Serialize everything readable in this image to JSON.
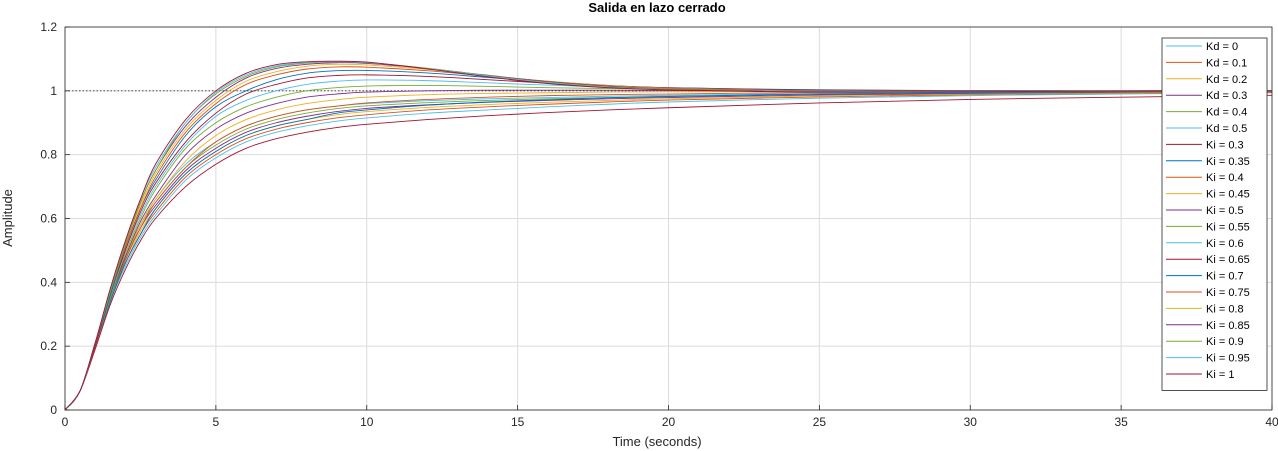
{
  "chart_data": {
    "type": "line",
    "title": "Salida en lazo cerrado",
    "xlabel": "Time (seconds)",
    "ylabel": "Amplitude",
    "xlim": [
      0,
      40
    ],
    "ylim": [
      0,
      1.2
    ],
    "xticks": [
      0,
      5,
      10,
      15,
      20,
      25,
      30,
      35,
      40
    ],
    "yticks": [
      0,
      0.2,
      0.4,
      0.6,
      0.8,
      1,
      1.2
    ],
    "xtick_labels": [
      "0",
      "5",
      "10",
      "15",
      "20",
      "25",
      "30",
      "35",
      "40"
    ],
    "ytick_labels": [
      "0",
      "0.2",
      "0.4",
      "0.6",
      "0.8",
      "1",
      "1.2"
    ],
    "grid": true,
    "reference_line": 1,
    "legend_position": "top-right",
    "x": [
      0,
      0.5,
      1,
      1.5,
      2,
      2.5,
      3,
      4,
      5,
      6,
      7,
      8,
      9,
      10,
      12,
      14,
      16,
      18,
      20,
      25,
      30,
      35,
      40
    ],
    "series": [
      {
        "name": "Kd = 0",
        "color": "#4dbeee",
        "values": [
          0,
          0.06,
          0.2,
          0.34,
          0.45,
          0.54,
          0.61,
          0.72,
          0.79,
          0.84,
          0.87,
          0.89,
          0.905,
          0.915,
          0.93,
          0.94,
          0.95,
          0.958,
          0.965,
          0.977,
          0.985,
          0.99,
          0.994
        ]
      },
      {
        "name": "Kd = 0.1",
        "color": "#d95319",
        "values": [
          0,
          0.06,
          0.2,
          0.34,
          0.46,
          0.55,
          0.62,
          0.73,
          0.8,
          0.85,
          0.88,
          0.9,
          0.915,
          0.925,
          0.94,
          0.95,
          0.958,
          0.965,
          0.971,
          0.981,
          0.988,
          0.992,
          0.995
        ]
      },
      {
        "name": "Kd = 0.2",
        "color": "#edb120",
        "values": [
          0,
          0.06,
          0.2,
          0.34,
          0.46,
          0.56,
          0.63,
          0.74,
          0.81,
          0.86,
          0.89,
          0.91,
          0.925,
          0.935,
          0.948,
          0.957,
          0.964,
          0.97,
          0.975,
          0.984,
          0.99,
          0.993,
          0.996
        ]
      },
      {
        "name": "Kd = 0.3",
        "color": "#7e2f8e",
        "values": [
          0,
          0.06,
          0.2,
          0.34,
          0.47,
          0.57,
          0.64,
          0.75,
          0.82,
          0.87,
          0.9,
          0.92,
          0.935,
          0.945,
          0.956,
          0.964,
          0.97,
          0.975,
          0.979,
          0.987,
          0.992,
          0.995,
          0.997
        ]
      },
      {
        "name": "Kd = 0.4",
        "color": "#77ac30",
        "values": [
          0,
          0.06,
          0.2,
          0.34,
          0.47,
          0.58,
          0.65,
          0.76,
          0.83,
          0.88,
          0.91,
          0.93,
          0.944,
          0.953,
          0.963,
          0.97,
          0.975,
          0.979,
          0.983,
          0.99,
          0.994,
          0.996,
          0.998
        ]
      },
      {
        "name": "Kd = 0.5",
        "color": "#4dbeee",
        "values": [
          0,
          0.06,
          0.2,
          0.34,
          0.48,
          0.58,
          0.66,
          0.77,
          0.84,
          0.89,
          0.92,
          0.94,
          0.952,
          0.96,
          0.969,
          0.975,
          0.979,
          0.983,
          0.986,
          0.992,
          0.995,
          0.997,
          0.998
        ]
      },
      {
        "name": "Ki = 0.3",
        "color": "#a2142f",
        "values": [
          0,
          0.06,
          0.19,
          0.33,
          0.44,
          0.53,
          0.6,
          0.7,
          0.77,
          0.82,
          0.85,
          0.87,
          0.885,
          0.895,
          0.91,
          0.922,
          0.932,
          0.94,
          0.947,
          0.962,
          0.973,
          0.98,
          0.986
        ]
      },
      {
        "name": "Ki = 0.35",
        "color": "#0072bd",
        "values": [
          0,
          0.06,
          0.2,
          0.34,
          0.46,
          0.55,
          0.63,
          0.74,
          0.81,
          0.86,
          0.89,
          0.91,
          0.93,
          0.94,
          0.955,
          0.965,
          0.972,
          0.978,
          0.982,
          0.99,
          0.994,
          0.997,
          0.998
        ]
      },
      {
        "name": "Ki = 0.4",
        "color": "#d95319",
        "values": [
          0,
          0.06,
          0.2,
          0.35,
          0.47,
          0.57,
          0.65,
          0.76,
          0.84,
          0.89,
          0.92,
          0.94,
          0.952,
          0.962,
          0.973,
          0.98,
          0.985,
          0.988,
          0.99,
          0.995,
          0.997,
          0.998,
          0.999
        ]
      },
      {
        "name": "Ki = 0.45",
        "color": "#edb120",
        "values": [
          0,
          0.06,
          0.2,
          0.35,
          0.48,
          0.58,
          0.66,
          0.78,
          0.86,
          0.91,
          0.94,
          0.96,
          0.972,
          0.98,
          0.988,
          0.992,
          0.994,
          0.996,
          0.997,
          0.998,
          0.999,
          1.0,
          1.0
        ]
      },
      {
        "name": "Ki = 0.5",
        "color": "#7e2f8e",
        "values": [
          0,
          0.06,
          0.2,
          0.35,
          0.48,
          0.59,
          0.67,
          0.8,
          0.88,
          0.93,
          0.96,
          0.98,
          0.99,
          0.996,
          1.0,
          1.002,
          1.002,
          1.002,
          1.001,
          1.0,
          1.0,
          1.0,
          1.0
        ]
      },
      {
        "name": "Ki = 0.55",
        "color": "#77ac30",
        "values": [
          0,
          0.06,
          0.2,
          0.35,
          0.49,
          0.6,
          0.69,
          0.82,
          0.9,
          0.95,
          0.98,
          1.0,
          1.01,
          1.015,
          1.017,
          1.014,
          1.01,
          1.007,
          1.005,
          1.002,
          1.001,
          1.0,
          1.0
        ]
      },
      {
        "name": "Ki = 0.6",
        "color": "#4dbeee",
        "values": [
          0,
          0.06,
          0.2,
          0.36,
          0.5,
          0.61,
          0.7,
          0.83,
          0.92,
          0.97,
          1.0,
          1.02,
          1.03,
          1.034,
          1.032,
          1.025,
          1.018,
          1.012,
          1.008,
          1.003,
          1.001,
          1.0,
          1.0
        ]
      },
      {
        "name": "Ki = 0.65",
        "color": "#a2142f",
        "values": [
          0,
          0.06,
          0.2,
          0.36,
          0.5,
          0.62,
          0.71,
          0.84,
          0.93,
          0.99,
          1.02,
          1.04,
          1.048,
          1.05,
          1.045,
          1.035,
          1.024,
          1.016,
          1.01,
          1.003,
          1.0,
          1.0,
          1.0
        ]
      },
      {
        "name": "Ki = 0.7",
        "color": "#0072bd",
        "values": [
          0,
          0.06,
          0.21,
          0.36,
          0.51,
          0.63,
          0.72,
          0.86,
          0.95,
          1.0,
          1.035,
          1.055,
          1.063,
          1.064,
          1.056,
          1.042,
          1.028,
          1.017,
          1.01,
          1.002,
          0.999,
          1.0,
          1.0
        ]
      },
      {
        "name": "Ki = 0.75",
        "color": "#d95319",
        "values": [
          0,
          0.06,
          0.21,
          0.37,
          0.51,
          0.63,
          0.73,
          0.87,
          0.96,
          1.02,
          1.05,
          1.068,
          1.075,
          1.074,
          1.063,
          1.046,
          1.03,
          1.017,
          1.009,
          1.0,
          0.998,
          0.999,
          1.0
        ]
      },
      {
        "name": "Ki = 0.8",
        "color": "#edb120",
        "values": [
          0,
          0.06,
          0.21,
          0.37,
          0.52,
          0.64,
          0.74,
          0.88,
          0.97,
          1.03,
          1.06,
          1.077,
          1.083,
          1.081,
          1.067,
          1.048,
          1.03,
          1.016,
          1.007,
          0.999,
          0.997,
          0.999,
          1.0
        ]
      },
      {
        "name": "Ki = 0.85",
        "color": "#7e2f8e",
        "values": [
          0,
          0.06,
          0.21,
          0.37,
          0.52,
          0.65,
          0.75,
          0.89,
          0.98,
          1.04,
          1.07,
          1.083,
          1.088,
          1.086,
          1.07,
          1.049,
          1.029,
          1.015,
          1.006,
          0.998,
          0.997,
          0.999,
          1.0
        ]
      },
      {
        "name": "Ki = 0.9",
        "color": "#77ac30",
        "values": [
          0,
          0.06,
          0.21,
          0.37,
          0.52,
          0.65,
          0.75,
          0.9,
          0.99,
          1.045,
          1.075,
          1.087,
          1.091,
          1.088,
          1.071,
          1.048,
          1.027,
          1.013,
          1.005,
          0.997,
          0.997,
          0.999,
          1.0
        ]
      },
      {
        "name": "Ki = 0.95",
        "color": "#4dbeee",
        "values": [
          0,
          0.06,
          0.21,
          0.38,
          0.53,
          0.66,
          0.76,
          0.9,
          0.995,
          1.05,
          1.078,
          1.089,
          1.092,
          1.089,
          1.07,
          1.046,
          1.025,
          1.011,
          1.004,
          0.997,
          0.997,
          0.999,
          1.0
        ]
      },
      {
        "name": "Ki = 1",
        "color": "#a2142f",
        "values": [
          0,
          0.06,
          0.21,
          0.38,
          0.53,
          0.66,
          0.77,
          0.91,
          1.0,
          1.055,
          1.082,
          1.091,
          1.093,
          1.09,
          1.069,
          1.044,
          1.023,
          1.01,
          1.003,
          0.996,
          0.997,
          0.999,
          1.0
        ]
      }
    ]
  }
}
